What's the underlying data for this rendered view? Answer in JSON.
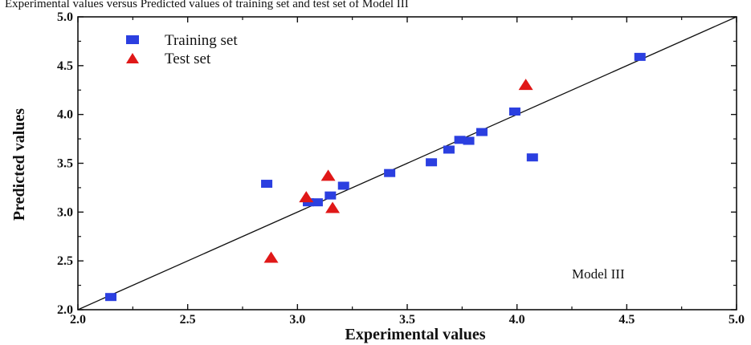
{
  "header": {
    "cropped_text": "Experimental values versus Predicted values of training set and test set of Model III"
  },
  "chart_data": {
    "type": "scatter",
    "title": "",
    "xlabel": "Experimental values",
    "ylabel": "Predicted values",
    "xlim": [
      2.0,
      5.0
    ],
    "ylim": [
      2.0,
      5.0
    ],
    "xticks": [
      "2.0",
      "2.5",
      "3.0",
      "3.5",
      "4.0",
      "4.5",
      "5.0"
    ],
    "yticks": [
      "2.0",
      "2.5",
      "3.0",
      "3.5",
      "4.0",
      "4.5",
      "5.0"
    ],
    "grid": false,
    "legend_position": "top-left",
    "annotation": "Model III",
    "reference_line": {
      "x": [
        2.0,
        5.0
      ],
      "y": [
        2.0,
        5.0
      ]
    },
    "series": [
      {
        "name": "Training set",
        "marker": "square",
        "color": "#2b3fe0",
        "points": [
          {
            "x": 2.15,
            "y": 2.13
          },
          {
            "x": 2.86,
            "y": 3.29
          },
          {
            "x": 3.05,
            "y": 3.1
          },
          {
            "x": 3.09,
            "y": 3.1
          },
          {
            "x": 3.15,
            "y": 3.17
          },
          {
            "x": 3.21,
            "y": 3.27
          },
          {
            "x": 3.42,
            "y": 3.4
          },
          {
            "x": 3.61,
            "y": 3.51
          },
          {
            "x": 3.69,
            "y": 3.64
          },
          {
            "x": 3.74,
            "y": 3.74
          },
          {
            "x": 3.78,
            "y": 3.73
          },
          {
            "x": 3.84,
            "y": 3.82
          },
          {
            "x": 3.99,
            "y": 4.03
          },
          {
            "x": 4.07,
            "y": 3.56
          },
          {
            "x": 4.56,
            "y": 4.59
          }
        ]
      },
      {
        "name": "Test set",
        "marker": "triangle",
        "color": "#e01818",
        "points": [
          {
            "x": 2.88,
            "y": 2.53
          },
          {
            "x": 3.04,
            "y": 3.15
          },
          {
            "x": 3.14,
            "y": 3.37
          },
          {
            "x": 3.16,
            "y": 3.04
          },
          {
            "x": 4.04,
            "y": 4.3
          }
        ]
      }
    ]
  }
}
